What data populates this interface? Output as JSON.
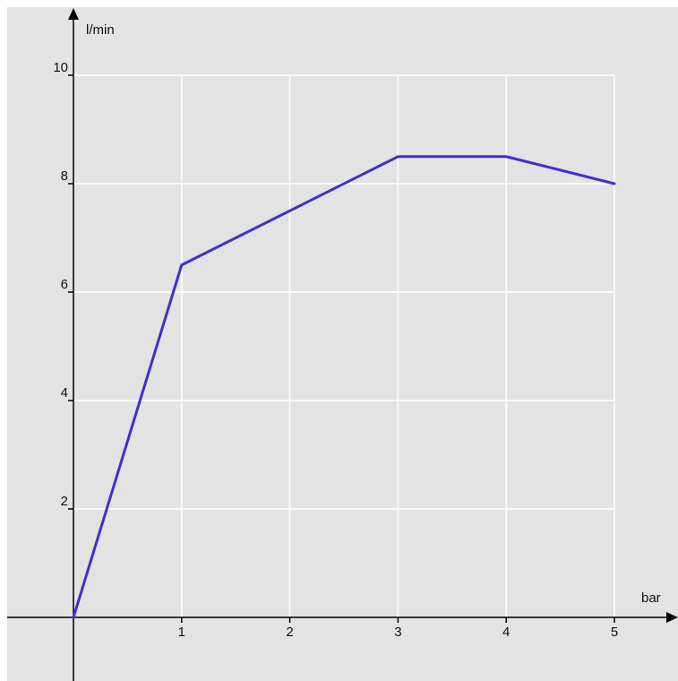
{
  "chart_data": {
    "type": "line",
    "title": "",
    "xlabel": "bar",
    "ylabel": "l/min",
    "x": [
      0,
      1,
      2,
      3,
      4,
      5
    ],
    "series": [
      {
        "values": [
          0,
          6.5,
          7.5,
          8.5,
          8.5,
          8.0
        ]
      }
    ],
    "x_ticks": [
      1,
      2,
      3,
      4,
      5
    ],
    "y_ticks": [
      2,
      4,
      6,
      8,
      10
    ],
    "xlim": [
      -0.65,
      5.5
    ],
    "ylim": [
      -1.2,
      11.1
    ],
    "grid": true,
    "legend": "none",
    "colors": {
      "background": "#e3e3e3",
      "grid": "#fafafa",
      "axis": "#000000",
      "series": "#4030d0"
    }
  }
}
